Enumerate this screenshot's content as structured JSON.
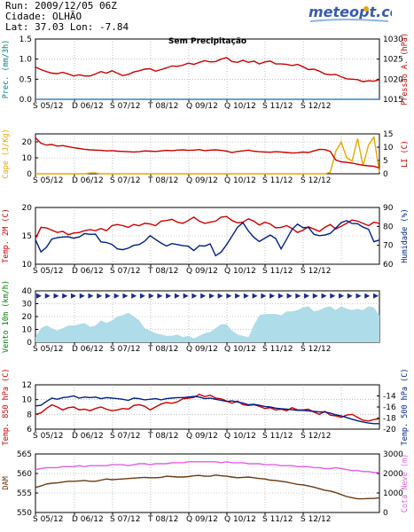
{
  "header": {
    "run": "Run: 2009/12/05 06Z",
    "city": "Cidade: OLHÃO",
    "coords": "Lat: 37.03  Lon: -7.84",
    "logo_text": "meteopt.com"
  },
  "colors": {
    "red": "#cc0000",
    "blue": "#001f8a",
    "orange": "#e6a800",
    "brown": "#6b3a10",
    "magenta": "#e060e0",
    "light_blue": "#aedce8",
    "wind_arrow": "#1a2a8a",
    "grid": "#9a9a9a"
  },
  "x_ticks": [
    "S 05/12",
    "D 06/12",
    "S 07/12",
    "T 08/12",
    "Q 09/12",
    "Q 10/12",
    "S 11/12",
    "S 12/12"
  ],
  "chart_data": [
    {
      "type": "line",
      "title": "Sem Precipitação",
      "left_axis": {
        "label": "Prec. (mm/3h)",
        "ticks": [
          "0.0",
          "0.5",
          "1.0",
          "1.5"
        ],
        "ylim": [
          0,
          1.5
        ],
        "color": "#008080"
      },
      "right_axis": {
        "label": "Pressão A. (hPa)",
        "ticks": [
          "1015",
          "1020",
          "1025",
          "1030"
        ],
        "ylim": [
          1015,
          1030
        ],
        "color": "#cc0000"
      },
      "series": [
        {
          "axis": "left",
          "values": [
            0,
            0,
            0,
            0,
            0,
            0,
            0,
            0,
            0,
            0,
            0,
            0,
            0,
            0,
            0,
            0,
            0,
            0,
            0,
            0,
            0,
            0,
            0,
            0,
            0,
            0,
            0,
            0,
            0,
            0,
            0,
            0,
            0,
            0,
            0,
            0,
            0,
            0,
            0,
            0,
            0,
            0,
            0,
            0,
            0,
            0,
            0,
            0,
            0,
            0,
            0,
            0,
            0,
            0,
            0,
            0,
            0,
            0,
            0,
            0,
            0,
            0,
            0,
            0
          ]
        },
        {
          "axis": "right",
          "values": [
            1023,
            1022.4,
            1021.9,
            1021.5,
            1021.4,
            1021.7,
            1021.3,
            1020.8,
            1021.1,
            1020.8,
            1020.8,
            1021.3,
            1021.9,
            1021.5,
            1022.1,
            1021.5,
            1020.9,
            1021.2,
            1021.8,
            1022.1,
            1022.5,
            1022.6,
            1022.0,
            1022.4,
            1022.8,
            1023.3,
            1023.2,
            1023.5,
            1024.0,
            1023.7,
            1024.2,
            1024.6,
            1024.3,
            1024.4,
            1025,
            1025.4,
            1024.4,
            1024.2,
            1024.7,
            1024.2,
            1024.5,
            1023.8,
            1024.3,
            1024.5,
            1023.8,
            1023.8,
            1023.7,
            1023.4,
            1023.7,
            1023.1,
            1022.4,
            1022.5,
            1022.0,
            1021.3,
            1021.1,
            1021.2,
            1020.6,
            1020.1,
            1020,
            1019.9,
            1019.4,
            1019.6,
            1019.5,
            1019.9
          ]
        }
      ]
    },
    {
      "type": "line",
      "left_axis": {
        "label": "Cape (J/Kg)",
        "ticks": [
          "0",
          "10",
          "20"
        ],
        "ylim": [
          0,
          25
        ],
        "color": "#e6a800"
      },
      "right_axis": {
        "label": "LI (C)",
        "ticks": [
          "0",
          "5",
          "10",
          "15"
        ],
        "ylim": [
          0,
          15
        ],
        "color": "#cc0000"
      },
      "series": [
        {
          "axis": "left",
          "values": [
            0,
            0,
            0,
            0,
            0,
            0,
            0,
            0,
            0,
            0,
            0.5,
            0.5,
            0,
            0,
            0,
            0,
            0,
            0,
            0,
            0,
            0,
            0,
            0,
            0,
            0,
            0,
            0,
            0,
            0,
            0,
            0,
            0,
            0,
            0,
            0,
            0,
            0,
            0,
            0,
            0,
            0,
            0,
            0,
            0,
            0,
            0,
            0,
            0,
            0,
            0,
            0,
            0,
            0,
            0,
            1,
            14,
            20,
            10,
            8,
            22,
            5,
            18,
            23,
            1
          ]
        },
        {
          "axis": "right",
          "values": [
            13.5,
            11.5,
            10.8,
            11.0,
            10.4,
            10.6,
            10.2,
            9.8,
            9.5,
            9.2,
            9.0,
            8.9,
            8.8,
            8.6,
            8.7,
            8.5,
            8.4,
            8.3,
            8.2,
            8.3,
            8.6,
            8.5,
            8.4,
            8.6,
            8.8,
            8.7,
            8.9,
            9.0,
            8.8,
            8.9,
            9.1,
            8.7,
            8.9,
            9.0,
            8.8,
            8.5,
            8.0,
            8.4,
            8.6,
            8.9,
            8.5,
            8.3,
            8.2,
            8.1,
            8.3,
            8.2,
            8.0,
            7.8,
            7.9,
            8.2,
            8.0,
            8.6,
            9.2,
            9.1,
            8.4,
            5.2,
            4.5,
            4.3,
            4.0,
            3.6,
            3.2,
            3.0,
            2.8,
            2.2
          ]
        }
      ]
    },
    {
      "type": "line",
      "left_axis": {
        "label": "Temp. 2M (C)",
        "ticks": [
          "10",
          "15",
          "20"
        ],
        "ylim": [
          10,
          20
        ],
        "color": "#cc0000"
      },
      "right_axis": {
        "label": "Humidade (%)",
        "ticks": [
          "60",
          "70",
          "80",
          "90"
        ],
        "ylim": [
          60,
          90
        ],
        "color": "#001f8a"
      },
      "series": [
        {
          "axis": "left",
          "values": [
            14.5,
            16.5,
            16.4,
            16.0,
            15.6,
            15.8,
            15.2,
            15.5,
            15.6,
            15.9,
            16.1,
            15.9,
            16.3,
            15.9,
            16.8,
            17.0,
            16.8,
            16.5,
            17.0,
            16.8,
            17.2,
            17.1,
            16.8,
            17.6,
            17.7,
            17.9,
            17.4,
            17.2,
            17.7,
            18.3,
            17.6,
            17.2,
            17.4,
            17.6,
            18.3,
            18.4,
            17.7,
            17.3,
            17.4,
            18.0,
            17.6,
            16.9,
            17.4,
            17.1,
            16.4,
            16.5,
            16.8,
            16.3,
            15.6,
            16.0,
            16.6,
            16.2,
            15.8,
            16.5,
            17.0,
            16.2,
            16.7,
            17.2,
            17.8,
            17.6,
            17.2,
            16.8,
            17.4,
            17.2
          ]
        },
        {
          "axis": "right",
          "values": [
            73,
            66.5,
            68.9,
            73.3,
            74.0,
            74.4,
            74.5,
            73.8,
            74.4,
            76.2,
            75.8,
            75.9,
            71.8,
            71.5,
            70.5,
            68.1,
            67.7,
            68.5,
            70.0,
            70.4,
            72.2,
            75.1,
            73.1,
            71.2,
            69.6,
            70.9,
            70.4,
            69.8,
            69.5,
            67.2,
            69.8,
            69.6,
            70.8,
            64.5,
            66.4,
            70.3,
            74.8,
            79.5,
            82,
            77.6,
            74.2,
            72.0,
            73.8,
            75.4,
            73.6,
            68.1,
            73.2,
            78.5,
            81.2,
            79.3,
            79.5,
            75.8,
            75.1,
            75.4,
            76.3,
            79.1,
            82,
            83,
            81.5,
            81.4,
            79.6,
            78.5,
            71.9,
            72.8
          ]
        }
      ]
    },
    {
      "type": "area",
      "left_axis": {
        "label": "Vento 10m (km/h)",
        "ticks": [
          "0",
          "10",
          "20",
          "30",
          "40"
        ],
        "ylim": [
          0,
          40
        ],
        "color": "#008000"
      },
      "series": [
        {
          "name": "wind",
          "values": [
            4,
            11,
            13,
            11,
            9,
            11,
            13,
            13,
            14,
            15,
            12,
            13,
            17,
            15,
            17,
            20,
            21,
            23,
            20,
            17,
            11,
            9,
            7,
            6,
            5,
            5,
            6,
            4,
            5,
            3,
            5,
            7,
            8,
            11,
            14,
            14,
            9,
            6,
            5,
            4,
            13,
            21,
            22,
            22,
            22,
            21,
            24,
            24,
            25,
            27,
            28,
            24,
            25,
            27,
            28,
            25,
            28,
            26,
            25,
            26,
            25,
            28,
            27,
            21
          ]
        }
      ],
      "arrow_row_value": 36
    },
    {
      "type": "line",
      "left_axis": {
        "label": "Temp. 850 hPa (C)",
        "ticks": [
          "6",
          "8",
          "10",
          "12"
        ],
        "ylim": [
          6,
          12
        ],
        "color": "#cc0000"
      },
      "right_axis": {
        "label": "Temp. 500 hPa (C)",
        "ticks": [
          "-20",
          "-18",
          "-16",
          "-14"
        ],
        "ylim": [
          -20,
          -12
        ],
        "color": "#001f8a"
      },
      "series": [
        {
          "axis": "left",
          "values": [
            8.0,
            8.2,
            8.8,
            9.3,
            9.0,
            8.6,
            8.9,
            9.0,
            8.6,
            8.7,
            8.5,
            8.8,
            9.0,
            8.7,
            8.5,
            8.6,
            8.8,
            8.7,
            9.2,
            9.3,
            9.1,
            8.6,
            9.0,
            9.4,
            9.6,
            9.5,
            9.7,
            10.1,
            10.2,
            10.3,
            10.7,
            10.4,
            10.6,
            10.2,
            10.1,
            9.8,
            9.5,
            9.8,
            9.3,
            9.2,
            9.3,
            9.1,
            8.8,
            8.9,
            8.6,
            8.7,
            8.5,
            8.9,
            8.6,
            8.6,
            8.7,
            8.3,
            8.0,
            8.4,
            7.9,
            7.8,
            7.6,
            7.9,
            8.0,
            7.6,
            7.2,
            7.1,
            7.3,
            7.4
          ]
        },
        {
          "axis": "right",
          "values": [
            -15.8,
            -15.7,
            -15.0,
            -14.4,
            -14.6,
            -14.3,
            -14.2,
            -14.0,
            -14.4,
            -14.2,
            -14.3,
            -14.2,
            -14.5,
            -14.3,
            -14.4,
            -14.5,
            -14.6,
            -14.8,
            -14.4,
            -14.5,
            -14.7,
            -14.6,
            -14.5,
            -14.7,
            -14.5,
            -14.4,
            -14.3,
            -14.3,
            -14.2,
            -14.1,
            -14.2,
            -14.5,
            -14.4,
            -14.6,
            -14.8,
            -15.0,
            -14.9,
            -15.1,
            -15.3,
            -15.6,
            -15.5,
            -15.7,
            -15.9,
            -16.0,
            -16.2,
            -16.3,
            -16.4,
            -16.5,
            -16.6,
            -16.6,
            -16.7,
            -16.8,
            -16.9,
            -16.9,
            -17.1,
            -17.4,
            -17.6,
            -17.9,
            -18.2,
            -18.5,
            -18.7,
            -18.9,
            -19.0,
            -19.0
          ]
        }
      ]
    },
    {
      "type": "line",
      "left_axis": {
        "label": "DAM",
        "ticks": [
          "550",
          "555",
          "560",
          "565"
        ],
        "ylim": [
          550,
          565
        ],
        "color": "#6b3a10"
      },
      "right_axis": {
        "label": "Cota Neve (m)",
        "ticks": [
          "0",
          "1000",
          "2000",
          "3000"
        ],
        "ylim": [
          0,
          3000
        ],
        "color": "#e060e0"
      },
      "series": [
        {
          "axis": "left",
          "values": [
            556.4,
            556.8,
            557.3,
            557.5,
            557.6,
            557.8,
            558,
            558,
            558.1,
            558.2,
            558,
            558,
            558.3,
            558.6,
            558.4,
            558.5,
            558.6,
            558.7,
            558.8,
            558.9,
            559,
            558.9,
            558.9,
            559,
            559.3,
            559.2,
            559.1,
            559.1,
            559.2,
            559.4,
            559.5,
            559.3,
            559.3,
            559.6,
            559.4,
            559.3,
            559.1,
            558.9,
            559,
            559.1,
            558.9,
            558.7,
            558.6,
            558.3,
            558.2,
            558,
            557.8,
            557.5,
            557.2,
            557.1,
            556.8,
            556.5,
            556.1,
            555.7,
            555.5,
            555.1,
            554.6,
            554.1,
            553.8,
            553.5,
            553.5,
            553.6,
            553.6,
            553.8
          ]
        },
        {
          "axis": "right",
          "values": [
            2200,
            2250,
            2300,
            2300,
            2300,
            2350,
            2350,
            2350,
            2400,
            2350,
            2400,
            2400,
            2400,
            2400,
            2450,
            2450,
            2450,
            2400,
            2450,
            2500,
            2500,
            2450,
            2500,
            2500,
            2500,
            2550,
            2550,
            2550,
            2600,
            2600,
            2600,
            2600,
            2600,
            2600,
            2550,
            2600,
            2550,
            2550,
            2550,
            2500,
            2500,
            2500,
            2450,
            2450,
            2450,
            2400,
            2400,
            2400,
            2350,
            2350,
            2350,
            2300,
            2300,
            2250,
            2250,
            2300,
            2250,
            2200,
            2150,
            2150,
            2100,
            2100,
            2050,
            2050
          ]
        }
      ]
    }
  ]
}
